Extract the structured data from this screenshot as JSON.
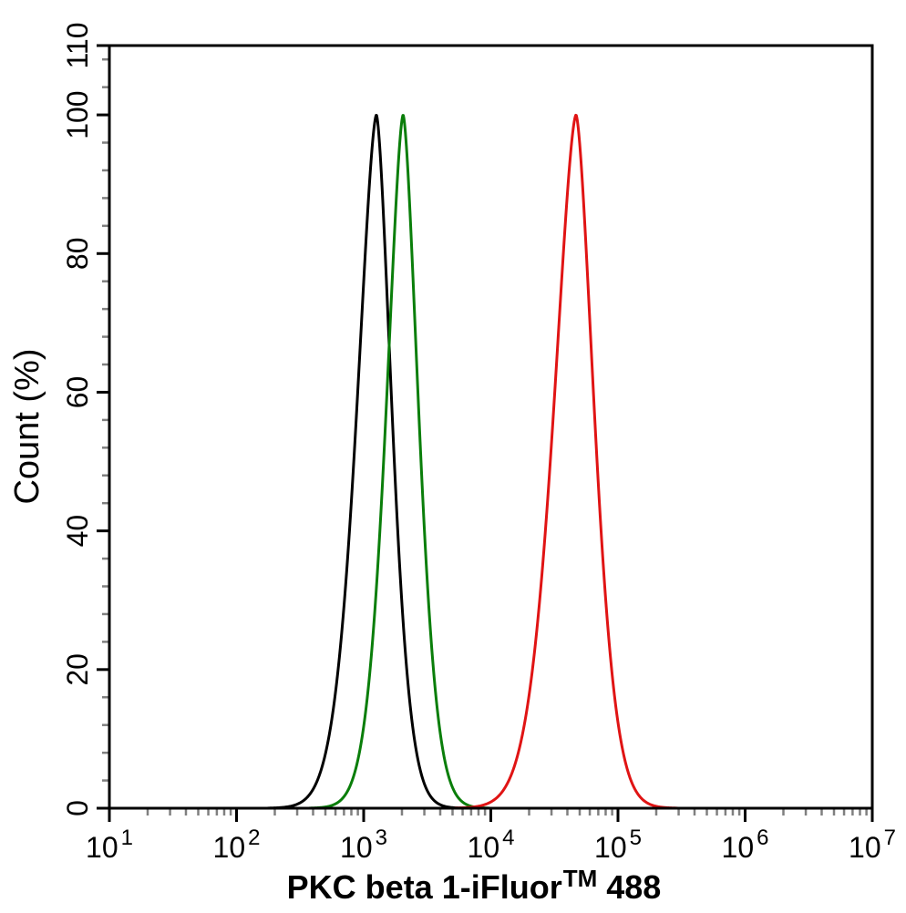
{
  "chart_data": {
    "type": "line",
    "subtype": "flow-cytometry-overlay-histogram",
    "title": "",
    "xlabel": "PKC beta 1-iFluor™ 488",
    "xlabel_parts": {
      "main": "PKC beta 1-iFluor",
      "sup": "TM",
      "end": " 488"
    },
    "ylabel": "Count  (%)",
    "x_scale": "log10",
    "x_range_log": [
      1,
      7
    ],
    "x_tick_base": "10",
    "x_tick_exponents": [
      "1",
      "2",
      "3",
      "4",
      "5",
      "6",
      "7"
    ],
    "x_minor_ticks_per_decade": [
      2,
      3,
      4,
      5,
      6,
      7,
      8,
      9
    ],
    "ylim": [
      0,
      110
    ],
    "y_major_ticks": [
      0,
      20,
      40,
      60,
      80,
      100,
      110
    ],
    "y_major_tick_labels": [
      "0",
      "20",
      "40",
      "60",
      "80",
      "100",
      "110"
    ],
    "y_minor_step": 4,
    "grid": false,
    "legend": "none",
    "plot_border": "full-rectangle",
    "colors": {
      "axis": "#000000",
      "minor_tick": "#808080",
      "background": "#ffffff"
    },
    "series": [
      {
        "name": "black-curve",
        "color": "#000000",
        "peak_x": 1260,
        "peak_log10_x": 3.1,
        "peak_y_percent": 100,
        "sigma_left_log10": 0.145,
        "sigma_right_log10": 0.115,
        "shape_power": 1.6
      },
      {
        "name": "green-curve",
        "color": "#0a7e0a",
        "peak_x": 2030,
        "peak_log10_x": 3.31,
        "peak_y_percent": 100,
        "sigma_left_log10": 0.125,
        "sigma_right_log10": 0.115,
        "shape_power": 1.6
      },
      {
        "name": "red-curve",
        "color": "#e01414",
        "peak_x": 46800,
        "peak_log10_x": 4.67,
        "peak_y_percent": 100,
        "sigma_left_log10": 0.165,
        "sigma_right_log10": 0.135,
        "shape_power": 1.6
      }
    ]
  }
}
